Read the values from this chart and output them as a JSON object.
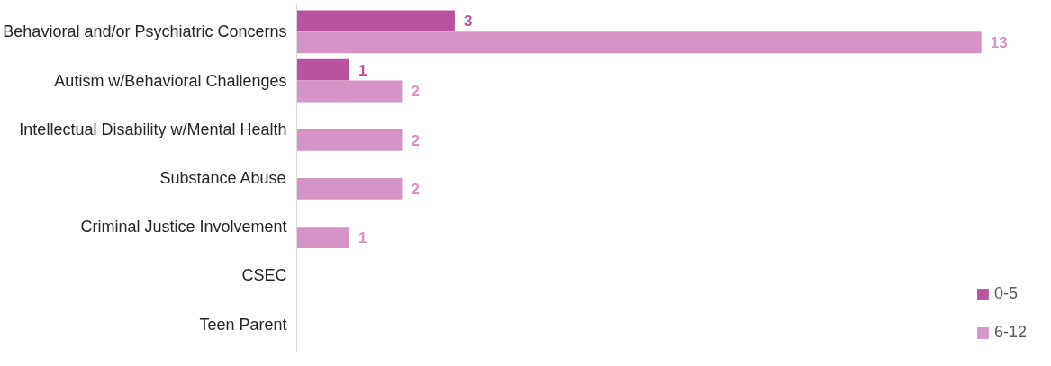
{
  "chart_data": {
    "type": "bar",
    "orientation": "horizontal",
    "categories": [
      "Behavioral and/or Psychiatric Concerns",
      "Autism w/Behavioral Challenges",
      "Intellectual Disability w/Mental Health",
      "Substance Abuse",
      "Criminal Justice Involvement",
      "CSEC",
      "Teen Parent"
    ],
    "series": [
      {
        "name": "0-5",
        "color": "#b9539f",
        "values": [
          3,
          1,
          null,
          null,
          null,
          null,
          null
        ]
      },
      {
        "name": "6-12",
        "color": "#d694c6",
        "values": [
          13,
          2,
          2,
          2,
          1,
          null,
          null
        ]
      }
    ],
    "data_labels": true,
    "legend": "bottom right",
    "grid": false,
    "tick_labels": "y"
  }
}
